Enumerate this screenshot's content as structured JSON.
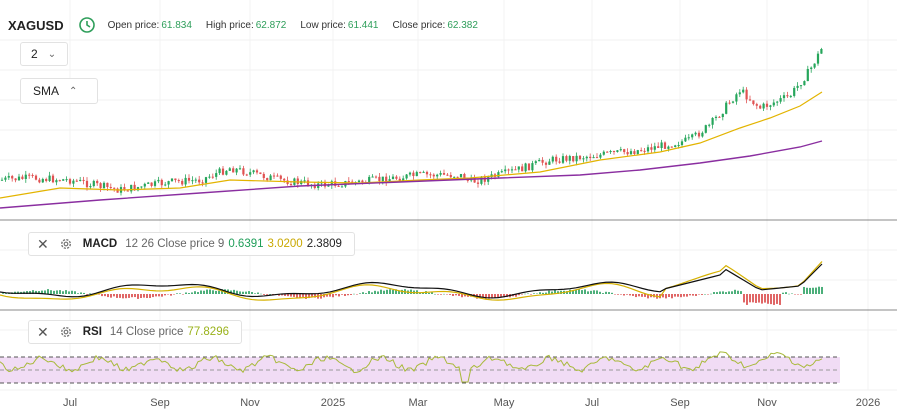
{
  "header": {
    "symbol": "XAGUSD",
    "open_label": "Open price:",
    "open_value": "61.834",
    "high_label": "High price:",
    "high_value": "62.872",
    "low_label": "Low price:",
    "low_value": "61.441",
    "close_label": "Close price:",
    "close_value": "62.382"
  },
  "selector": {
    "value": "2"
  },
  "overlay": {
    "label": "SMA"
  },
  "macd": {
    "name": "MACD",
    "params": "12 26 Close price 9",
    "v1": "0.6391",
    "v2": "3.0200",
    "v3": "2.3809"
  },
  "rsi": {
    "name": "RSI",
    "params": "14 Close price",
    "value": "77.8296"
  },
  "x_axis": {
    "labels": [
      "Jul",
      "Sep",
      "Nov",
      "2025",
      "Mar",
      "May",
      "Jul",
      "Sep",
      "Nov",
      "2026"
    ]
  },
  "colors": {
    "up": "#26a65b",
    "down": "#e05252",
    "sma_fast": "#e3b400",
    "sma_slow": "#8a2ea0",
    "macd_line": "#111111",
    "signal_line": "#d6b100",
    "rsi_line": "#a8b93a",
    "rsi_band": "#f1dcf5"
  },
  "icons": {
    "clock": "clock-icon",
    "close": "close-icon",
    "gear": "gear-icon",
    "chevron_down": "chevron-down-icon",
    "chevron_up": "chevron-up-icon"
  }
}
